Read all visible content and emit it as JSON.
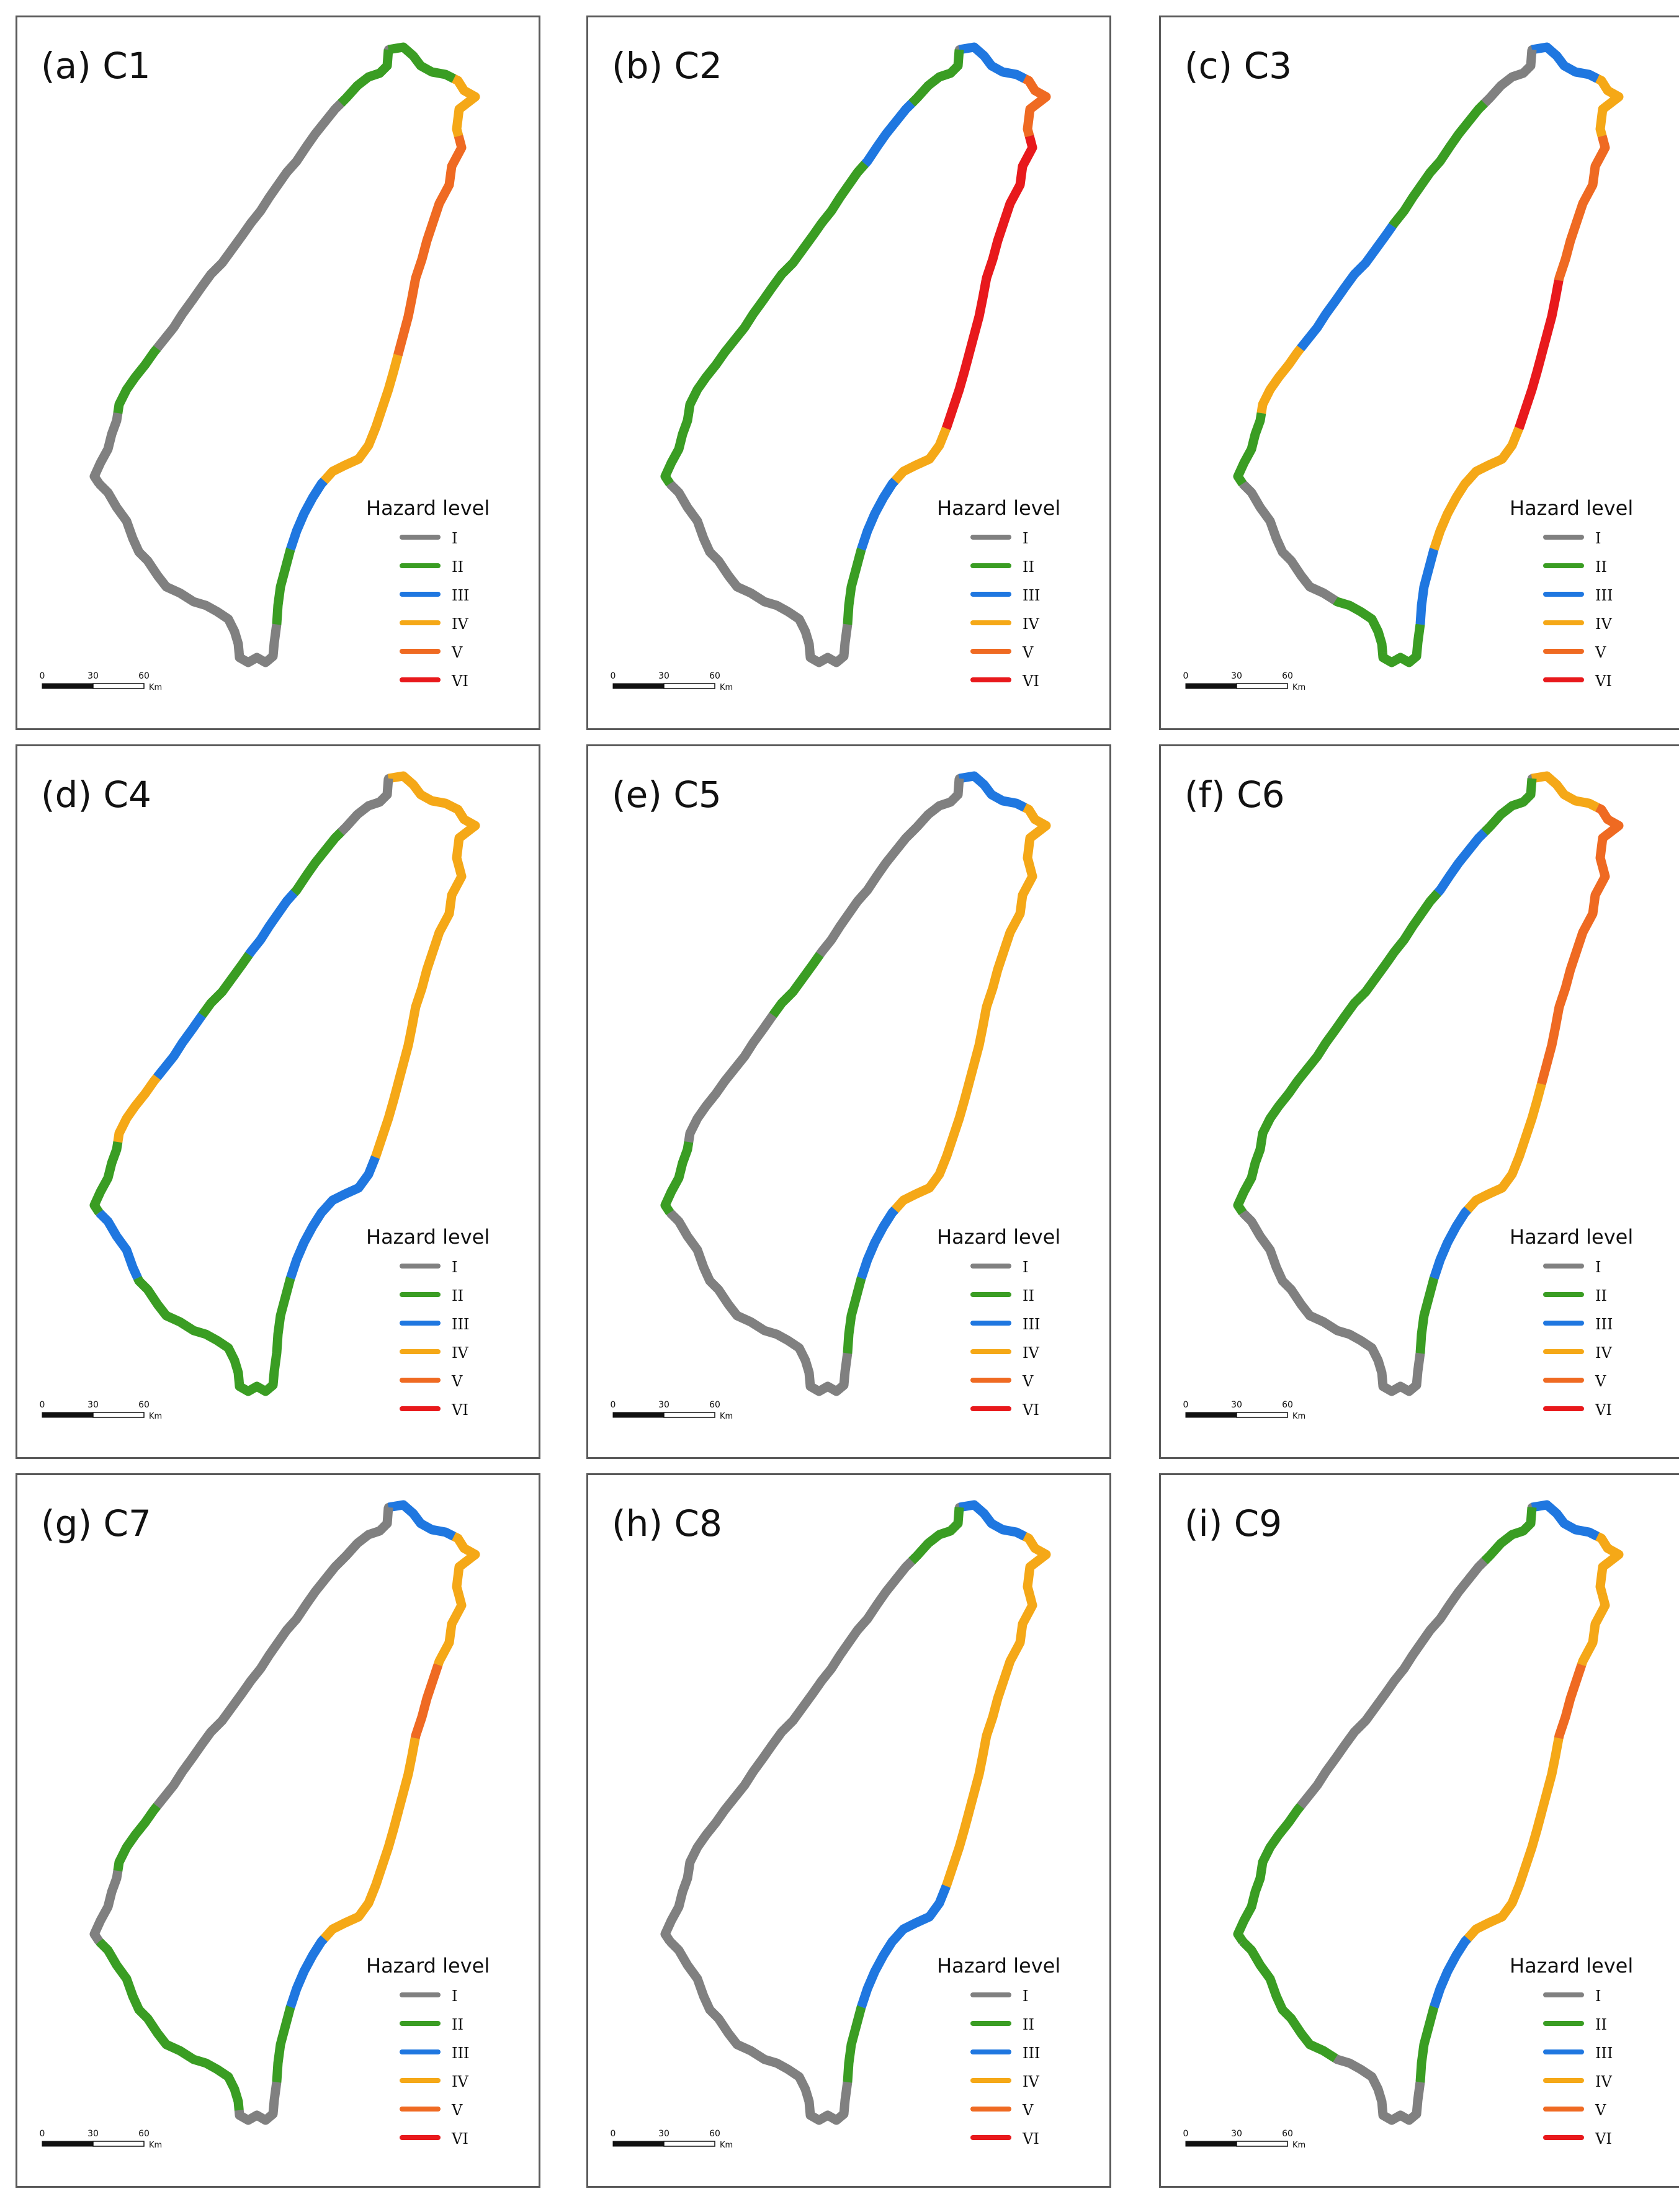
{
  "legend": {
    "title": "Hazard level",
    "levels": [
      {
        "label": "I",
        "color": "#808080"
      },
      {
        "label": "II",
        "color": "#3a9d23"
      },
      {
        "label": "III",
        "color": "#1f77e0"
      },
      {
        "label": "IV",
        "color": "#f5a817"
      },
      {
        "label": "V",
        "color": "#ef6a22"
      },
      {
        "label": "VI",
        "color": "#e8191c"
      }
    ]
  },
  "scale_bar": {
    "ticks": [
      "0",
      "30",
      "60"
    ],
    "unit": "Km"
  },
  "panels": [
    {
      "label": "(a) C1",
      "segments": [
        "II",
        "IV",
        "V",
        "V",
        "V",
        "IV",
        "IV",
        "III",
        "II",
        "I",
        "I",
        "I",
        "I",
        "I",
        "II",
        "I",
        "I",
        "I",
        "I",
        "II"
      ]
    },
    {
      "label": "(b) C2",
      "segments": [
        "III",
        "V",
        "VI",
        "VI",
        "VI",
        "VI",
        "IV",
        "III",
        "II",
        "I",
        "I",
        "I",
        "I",
        "II",
        "II",
        "II",
        "II",
        "II",
        "III",
        "II"
      ]
    },
    {
      "label": "(c) C3",
      "segments": [
        "III",
        "IV",
        "V",
        "V",
        "VI",
        "VI",
        "IV",
        "IV",
        "III",
        "II",
        "II",
        "I",
        "I",
        "II",
        "IV",
        "III",
        "III",
        "II",
        "II",
        "I"
      ]
    },
    {
      "label": "(d) C4",
      "segments": [
        "IV",
        "IV",
        "IV",
        "IV",
        "IV",
        "IV",
        "III",
        "III",
        "II",
        "II",
        "II",
        "II",
        "III",
        "II",
        "IV",
        "III",
        "II",
        "III",
        "II",
        "I"
      ]
    },
    {
      "label": "(e) C5",
      "segments": [
        "III",
        "IV",
        "IV",
        "IV",
        "IV",
        "IV",
        "IV",
        "III",
        "II",
        "I",
        "I",
        "I",
        "I",
        "II",
        "I",
        "I",
        "II",
        "I",
        "I",
        "I"
      ]
    },
    {
      "label": "(f) C6",
      "segments": [
        "IV",
        "V",
        "V",
        "V",
        "V",
        "IV",
        "IV",
        "III",
        "II",
        "I",
        "I",
        "I",
        "I",
        "II",
        "II",
        "II",
        "II",
        "II",
        "III",
        "II"
      ]
    },
    {
      "label": "(g) C7",
      "segments": [
        "III",
        "IV",
        "IV",
        "V",
        "IV",
        "IV",
        "IV",
        "III",
        "II",
        "I",
        "II",
        "II",
        "II",
        "I",
        "II",
        "I",
        "I",
        "I",
        "I",
        "I"
      ]
    },
    {
      "label": "(h) C8",
      "segments": [
        "III",
        "IV",
        "IV",
        "IV",
        "IV",
        "IV",
        "III",
        "III",
        "II",
        "I",
        "I",
        "I",
        "I",
        "I",
        "I",
        "I",
        "I",
        "I",
        "I",
        "II"
      ]
    },
    {
      "label": "(i) C9",
      "segments": [
        "III",
        "IV",
        "IV",
        "V",
        "IV",
        "IV",
        "IV",
        "III",
        "II",
        "I",
        "I",
        "II",
        "II",
        "II",
        "II",
        "I",
        "I",
        "I",
        "I",
        "II"
      ]
    }
  ]
}
